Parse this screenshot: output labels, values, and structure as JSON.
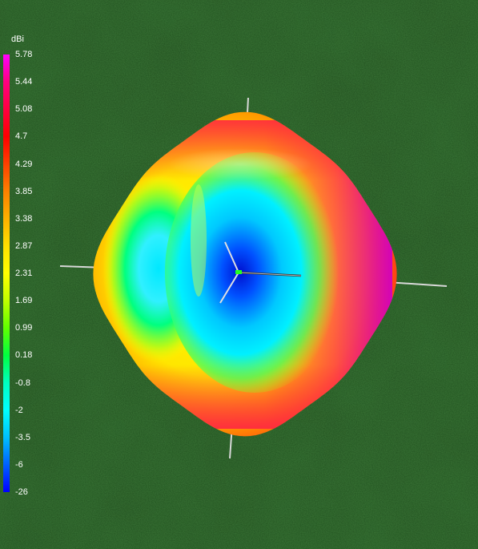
{
  "chart_data": {
    "type": "heatmap",
    "title": "",
    "legend": {
      "unit": "dBi",
      "placement": "left",
      "ticks": [
        5.78,
        5.44,
        5.08,
        4.7,
        4.29,
        3.85,
        3.38,
        2.87,
        2.31,
        1.69,
        0.99,
        0.18,
        -0.8,
        -2,
        -3.5,
        -6,
        -26
      ],
      "tick_labels": [
        "5.78",
        "5.44",
        "5.08",
        "4.7",
        "4.29",
        "3.85",
        "3.38",
        "2.87",
        "2.31",
        "1.69",
        "0.99",
        "0.18",
        "-0.8",
        "-2",
        "-3.5",
        "-6",
        "-26"
      ],
      "colors": [
        "#ff00ff",
        "#ff0080",
        "#ff0040",
        "#ff0000",
        "#ff4000",
        "#ff8000",
        "#ffb000",
        "#ffe000",
        "#ffff00",
        "#c0ff00",
        "#60ff00",
        "#00ff40",
        "#00ffc0",
        "#00ffff",
        "#00c0ff",
        "#0060ff",
        "#0000ff"
      ]
    },
    "description_values": {
      "max_gain_dbi": 5.78,
      "min_gain_dbi": -26
    }
  },
  "colors": {
    "background": "#1f4a1c",
    "axis": "#d0d0d0",
    "origin_marker": "#22ff22"
  }
}
